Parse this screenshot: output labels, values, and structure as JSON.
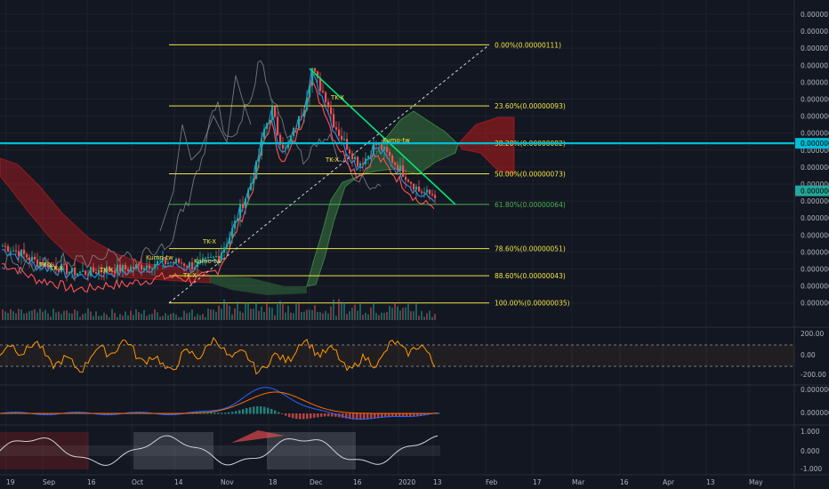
{
  "theme": {
    "bg": "#131722",
    "grid": "#1e222d",
    "axis_text": "#b2b5be",
    "divider": "#2a2e39",
    "up": "#26a69a",
    "down": "#ef5350",
    "fib": "#f0e442",
    "fib_618": "#4caf50",
    "trend": "#00e676",
    "cyan": "#00bcd4",
    "cloud_bull": "#4caf50",
    "cloud_bear": "#b71c1c",
    "tenkan": "#2196f3",
    "kijun": "#ff5252",
    "chikou": "#9598a1",
    "cci": "#ff9800",
    "macd": "#2962ff",
    "signal": "#ff6d00"
  },
  "chart_data": [
    {
      "type": "candlestick",
      "panel": "price",
      "y_ticks": [
        "0.00000120",
        "0.00000115",
        "0.00000110",
        "0.00000105",
        "0.00000100",
        "0.00000095",
        "0.00000090",
        "0.00000085",
        "0.00000080",
        "0.00000075",
        "0.00000070",
        "0.00000065",
        "0.00000060",
        "0.00000055",
        "0.00000050",
        "0.00000045",
        "0.00000040",
        "0.00000035"
      ],
      "ylim": [
        3.3e-07,
        1.21e-06
      ],
      "x_ticks": [
        "19",
        "Sep",
        "16",
        "Oct",
        "14",
        "Nov",
        "18",
        "Dec",
        "16",
        "2020",
        "13",
        "Feb",
        "17",
        "Mar",
        "16",
        "Apr",
        "13",
        "May"
      ],
      "fib_levels": [
        {
          "label": "0.00%(0.00000111)",
          "value": 1.11e-06
        },
        {
          "label": "23.60%(0.00000093)",
          "value": 9.3e-07
        },
        {
          "label": "38.20%(0.00000082)",
          "value": 8.2e-07
        },
        {
          "label": "50.00%(0.00000073)",
          "value": 7.3e-07
        },
        {
          "label": "61.80%(0.00000064)",
          "value": 6.4e-07
        },
        {
          "label": "78.60%(0.00000051)",
          "value": 5.1e-07
        },
        {
          "label": "88.60%(0.00000043)",
          "value": 4.3e-07
        },
        {
          "label": "100.00%(0.00000035)",
          "value": 3.5e-07
        }
      ],
      "price_markers": [
        {
          "label": "0.00000082",
          "value": 8.2e-07,
          "color": "#00bcd4"
        },
        {
          "label": "0.00000068",
          "value": 6.8e-07,
          "color": "#26a69a"
        }
      ],
      "annotations": [
        "TK-X",
        "TK-X",
        "TK-X",
        "Kumo-tw",
        "TK-X",
        "Kumo-tw",
        "TK-X",
        "TK-X",
        "Kumo-tw"
      ],
      "series": [
        {
          "name": "price",
          "values": [
            5e-07,
            4.7e-07,
            4.5e-07,
            4.6e-07,
            4.4e-07,
            4.3e-07,
            4.2e-07,
            4.5e-07,
            4.7e-07,
            4.8e-07,
            5e-07,
            5.8e-07,
            6.6e-07,
            7.2e-07,
            8.6e-07,
            9.2e-07,
            8.5e-07,
            9e-07,
            1.05e-06,
            9.8e-07,
            9e-07,
            8.4e-07,
            7.8e-07,
            7.4e-07,
            8e-07,
            7.6e-07,
            7.3e-07,
            6.9e-07,
            6.7e-07,
            6.8e-07
          ]
        }
      ]
    },
    {
      "type": "line",
      "panel": "CCI",
      "y_ticks": [
        "200.00",
        "0.00",
        "-200.00"
      ],
      "ylim": [
        -260,
        260
      ]
    },
    {
      "type": "line",
      "panel": "MACD",
      "y_ticks": [
        "0.00000010",
        "0.00000000"
      ]
    },
    {
      "type": "line",
      "panel": "oscillator",
      "y_ticks": [
        "1.000",
        "0.000",
        "-1.000"
      ],
      "ylim": [
        -1.1,
        1.1
      ]
    }
  ]
}
